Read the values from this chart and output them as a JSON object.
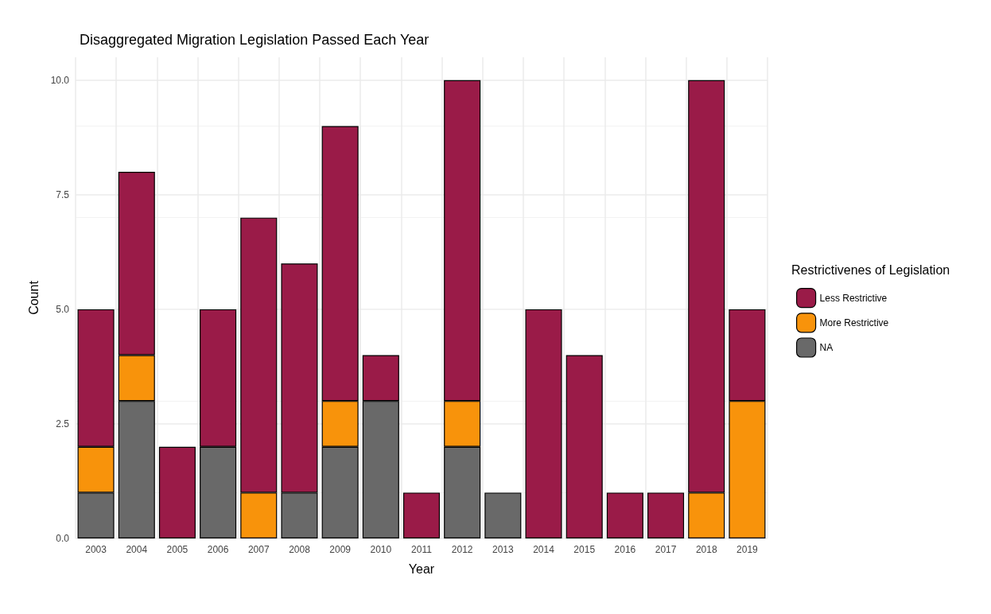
{
  "chart_data": {
    "type": "bar",
    "title": "Disaggregated Migration Legislation Passed Each Year",
    "xlabel": "Year",
    "ylabel": "Count",
    "legend_title": "Restrictivenes of Legislation",
    "categories": [
      "2003",
      "2004",
      "2005",
      "2006",
      "2007",
      "2008",
      "2009",
      "2010",
      "2011",
      "2012",
      "2013",
      "2014",
      "2015",
      "2016",
      "2017",
      "2018",
      "2019"
    ],
    "stacked": true,
    "series": [
      {
        "name": "NA",
        "color": "#696969",
        "values": [
          1,
          3,
          null,
          2,
          null,
          1,
          2,
          3,
          null,
          2,
          1,
          null,
          null,
          null,
          null,
          null,
          null
        ]
      },
      {
        "name": "More Restrictive",
        "color": "#f8930b",
        "values": [
          1,
          1,
          null,
          null,
          1,
          null,
          1,
          null,
          null,
          1,
          null,
          null,
          null,
          null,
          null,
          1,
          3
        ]
      },
      {
        "name": "Less Restrictive",
        "color": "#9a1b48",
        "values": [
          3,
          4,
          2,
          3,
          6,
          5,
          6,
          1,
          1,
          7,
          null,
          5,
          4,
          1,
          1,
          9,
          2
        ]
      }
    ],
    "ylim": [
      0,
      10.5
    ],
    "yticks": [
      {
        "value": 0,
        "label": "0.0"
      },
      {
        "value": 2.5,
        "label": "2.5"
      },
      {
        "value": 5,
        "label": "5.0"
      },
      {
        "value": 7.5,
        "label": "7.5"
      },
      {
        "value": 10,
        "label": "10.0"
      }
    ],
    "grid": true,
    "legend": "right"
  }
}
